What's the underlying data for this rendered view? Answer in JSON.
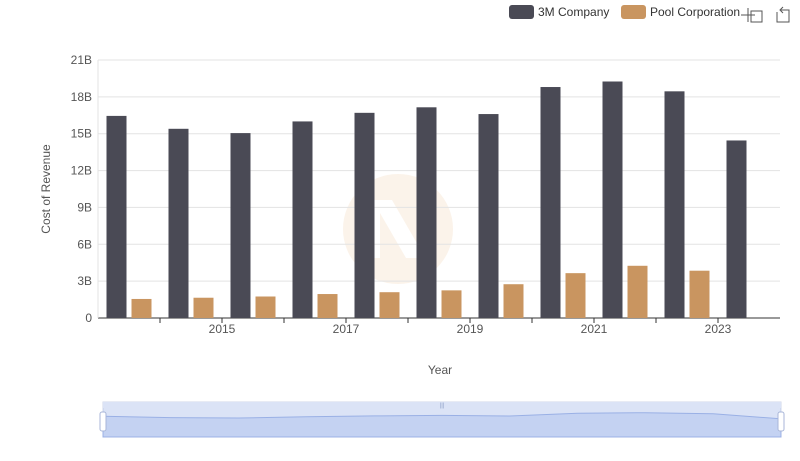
{
  "chart_data": {
    "type": "bar",
    "xlabel": "Year",
    "ylabel": "Cost of Revenue",
    "ylim": [
      0,
      21000000000
    ],
    "y_ticks": [
      0,
      3000000000,
      6000000000,
      9000000000,
      12000000000,
      15000000000,
      18000000000,
      21000000000
    ],
    "y_tick_labels": [
      "0",
      "3B",
      "6B",
      "9B",
      "12B",
      "15B",
      "18B",
      "21B"
    ],
    "categories": [
      "2014",
      "2015",
      "2016",
      "2017",
      "2018",
      "2019",
      "2020",
      "2021",
      "2022",
      "2023",
      "2024"
    ],
    "x_tick_labels": [
      "",
      "2015",
      "",
      "2017",
      "",
      "2019",
      "",
      "2021",
      "",
      "2023",
      ""
    ],
    "series": [
      {
        "name": "3M Company",
        "color": "#4a4a55",
        "values": [
          16450000000,
          15400000000,
          15050000000,
          16000000000,
          16700000000,
          17150000000,
          16600000000,
          18800000000,
          19250000000,
          18450000000,
          14450000000
        ]
      },
      {
        "name": "Pool Corporation",
        "color": "#c99560",
        "values": [
          1550000000,
          1650000000,
          1750000000,
          1950000000,
          2100000000,
          2250000000,
          2750000000,
          3650000000,
          4250000000,
          3850000000,
          0
        ]
      }
    ],
    "grid": true,
    "legend": "top-right"
  },
  "toolbar": {
    "zoom_icon": "zoom-select-icon",
    "reset_icon": "zoom-reset-icon"
  },
  "overview": {
    "handle_label": "|||"
  }
}
